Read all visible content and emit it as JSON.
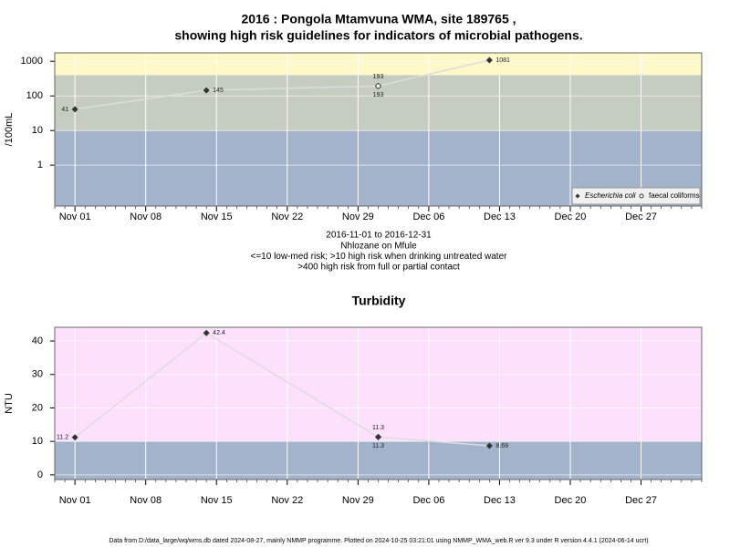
{
  "chart_data": [
    {
      "type": "line",
      "title": [
        "2016 : Pongola Mtamvuna WMA, site 189765 ,",
        "showing high risk guidelines for indicators of microbial pathogens."
      ],
      "ylabel": "/100mL",
      "log_y": true,
      "x": [
        "2016-11-01",
        "2016-11-14",
        "2016-12-01",
        "2016-12-12"
      ],
      "series": [
        {
          "name": "Escherichia coli",
          "color": "#333333",
          "marker": "diamond",
          "values": [
            41,
            145,
            193,
            1081
          ]
        },
        {
          "name": "faecal coliforms",
          "color": "#333333",
          "marker": "circle",
          "values": [
            null,
            null,
            193,
            null
          ]
        }
      ],
      "line_color": "#dddddd",
      "xlim": [
        "2016-10-30",
        "2017-01-02"
      ],
      "xticks": [
        {
          "value": "2016-11-01",
          "label": "Nov 01"
        },
        {
          "value": "2016-11-08",
          "label": "Nov 08"
        },
        {
          "value": "2016-11-15",
          "label": "Nov 15"
        },
        {
          "value": "2016-11-22",
          "label": "Nov 22"
        },
        {
          "value": "2016-11-29",
          "label": "Nov 29"
        },
        {
          "value": "2016-12-06",
          "label": "Dec 06"
        },
        {
          "value": "2016-12-13",
          "label": "Dec 13"
        },
        {
          "value": "2016-12-20",
          "label": "Dec 20"
        },
        {
          "value": "2016-12-27",
          "label": "Dec 27"
        }
      ],
      "ylim": [
        0.066,
        1750
      ],
      "yticks": [
        1,
        10,
        100,
        1000
      ],
      "bands": [
        {
          "to": 10,
          "color": "#a3b3cb"
        },
        {
          "from": 10,
          "to": 400,
          "color": "#c5cdc0"
        },
        {
          "from": 400,
          "color": "#fff8c8"
        }
      ],
      "grid": true,
      "legend": "bottom right",
      "notes": [
        "2016-11-01 to 2016-12-31",
        "Nhlozane on Mfule",
        "<=10 low-med risk; >10 high risk when drinking untreated water",
        ">400 high risk from full or partial contact"
      ]
    },
    {
      "type": "line",
      "title": [
        "Turbidity"
      ],
      "ylabel": "NTU",
      "log_y": false,
      "x": [
        "2016-11-01",
        "2016-11-14",
        "2016-12-01",
        "2016-12-01",
        "2016-12-12"
      ],
      "series": [
        {
          "color": "#333333",
          "marker": "diamond",
          "values": [
            11.2,
            42.4,
            11.3,
            11.3,
            8.69
          ]
        }
      ],
      "line_color": "#dddddd",
      "xlim": [
        "2016-10-30",
        "2017-01-02"
      ],
      "xticks": [
        {
          "value": "2016-11-01",
          "label": "Nov 01"
        },
        {
          "value": "2016-11-08",
          "label": "Nov 08"
        },
        {
          "value": "2016-11-15",
          "label": "Nov 15"
        },
        {
          "value": "2016-11-22",
          "label": "Nov 22"
        },
        {
          "value": "2016-11-29",
          "label": "Nov 29"
        },
        {
          "value": "2016-12-06",
          "label": "Dec 06"
        },
        {
          "value": "2016-12-13",
          "label": "Dec 13"
        },
        {
          "value": "2016-12-20",
          "label": "Dec 20"
        },
        {
          "value": "2016-12-27",
          "label": "Dec 27"
        }
      ],
      "ylim": [
        -1.4,
        44.1
      ],
      "yticks": [
        0,
        10,
        20,
        30,
        40
      ],
      "bands": [
        {
          "to": 10,
          "color": "#a3b3cb"
        },
        {
          "from": 10,
          "color": "#fce0fc"
        }
      ],
      "grid": true
    }
  ],
  "footer": "Data from D:/data_large/wq/wms.db dated 2024-08-27, mainly NMMP programme. Plotted on 2024-10-25 03:21:01 using NMMP_WMA_web.R ver 9.3 under R version 4.4.1 (2024-06-14 ucrt)"
}
